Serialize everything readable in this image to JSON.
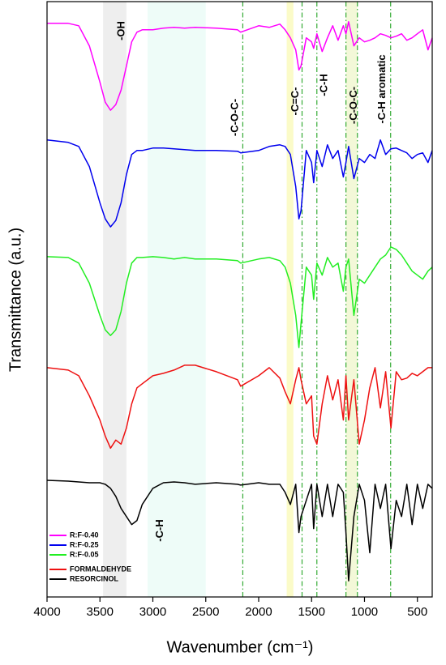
{
  "chart_data": {
    "type": "line",
    "xlabel": "Wavenumber (cm⁻¹)",
    "ylabel": "Transmittance (a.u.)",
    "xlim": [
      4000,
      360
    ],
    "ylim": [
      0,
      74
    ],
    "xticks": [
      4000,
      3500,
      3000,
      2500,
      2000,
      1500,
      1000,
      500
    ],
    "legend": "lower left",
    "x": [
      4000,
      3800,
      3700,
      3600,
      3500,
      3450,
      3400,
      3350,
      3300,
      3250,
      3200,
      3150,
      3100,
      3000,
      2900,
      2800,
      2700,
      2600,
      2400,
      2200,
      2170,
      2000,
      1900,
      1800,
      1750,
      1700,
      1650,
      1620,
      1600,
      1550,
      1500,
      1480,
      1450,
      1400,
      1350,
      1300,
      1250,
      1200,
      1175,
      1150,
      1100,
      1050,
      1000,
      950,
      900,
      850,
      800,
      750,
      700,
      650,
      600,
      550,
      500,
      450,
      400,
      360
    ],
    "series": [
      {
        "name": "R:F-0.40",
        "color": "#ff00ff",
        "values": [
          71.3,
          71.3,
          71,
          68.5,
          64,
          61.5,
          60.5,
          61.2,
          63,
          66,
          69,
          70.2,
          70.5,
          70.5,
          70.7,
          70.8,
          70.7,
          70.8,
          70.7,
          70.5,
          70.2,
          71,
          70.8,
          71.2,
          70.5,
          69.5,
          68,
          65.5,
          66,
          69.5,
          69,
          68.2,
          70,
          67.8,
          69.5,
          71,
          69.2,
          71,
          70,
          71.5,
          68.5,
          69.5,
          69,
          69.2,
          69.5,
          70,
          69.8,
          69.5,
          69.7,
          70,
          69.2,
          69.5,
          70,
          70.5,
          68,
          69.5
        ]
      },
      {
        "name": "R:F-0.25",
        "color": "#0000ee",
        "values": [
          56.8,
          56.5,
          56,
          53.5,
          49,
          47,
          46,
          46.8,
          49,
          52.5,
          55,
          55.5,
          55.5,
          55.8,
          55.8,
          55.7,
          55.6,
          55.5,
          55.5,
          55.4,
          55.2,
          55.5,
          56,
          56.2,
          56,
          55,
          51,
          47,
          48,
          55.5,
          54,
          51.5,
          55.5,
          53.5,
          56.2,
          54.5,
          55.5,
          52.2,
          54,
          56,
          52,
          54.5,
          54,
          55,
          54.5,
          56.8,
          55,
          55.7,
          55.8,
          55.5,
          55.2,
          54.5,
          55,
          55.2,
          54,
          55.5
        ]
      },
      {
        "name": "R:F-0.05",
        "color": "#22ee22",
        "values": [
          42.3,
          42.2,
          41.5,
          39,
          35,
          33.2,
          32.5,
          33.2,
          35.5,
          39,
          41.5,
          42.2,
          42.2,
          42.3,
          42.2,
          42,
          42.2,
          42,
          42,
          41.8,
          41.5,
          42,
          42.2,
          41.8,
          41,
          39,
          35,
          31,
          34,
          41,
          40,
          37,
          41.5,
          40,
          42.2,
          41,
          41.5,
          38,
          41,
          42,
          35,
          39.5,
          39,
          40,
          41,
          42,
          42.5,
          43.5,
          43.2,
          42.5,
          41.5,
          40.5,
          40,
          39.5,
          40.5,
          41
        ]
      },
      {
        "name": "FORMALDEHYDE",
        "color": "#ee1111",
        "values": [
          28.5,
          28.2,
          27.5,
          25,
          22,
          20,
          18.5,
          19.5,
          19,
          21,
          24,
          26,
          26.5,
          27.5,
          27.8,
          28.2,
          28.8,
          28.8,
          28,
          27,
          26.2,
          27.5,
          28.5,
          27.2,
          25.5,
          24,
          27,
          28.5,
          27,
          24,
          25,
          20,
          19,
          24,
          27.5,
          24.5,
          27,
          22,
          27.5,
          22,
          27,
          19,
          22,
          26,
          28.5,
          23.5,
          28,
          21,
          28,
          27,
          27.2,
          27.8,
          27.5,
          28,
          28.5,
          28.5
        ]
      },
      {
        "name": "RESORCINOL",
        "color": "#000000",
        "values": [
          14.5,
          14.4,
          14.3,
          14.2,
          14.2,
          14,
          13.5,
          12.5,
          11,
          10,
          9,
          9.5,
          11.5,
          13.5,
          14.2,
          14.3,
          14.2,
          14,
          14.2,
          14,
          13.9,
          14.2,
          14,
          14,
          13,
          11.5,
          14,
          8,
          10,
          12,
          14,
          8.5,
          14,
          10,
          14,
          10,
          14,
          13,
          8,
          2,
          10,
          14,
          12,
          5.5,
          14,
          11,
          14,
          6,
          12,
          10,
          14,
          9,
          14,
          11,
          14,
          13.5
        ]
      }
    ],
    "bands": [
      {
        "range": [
          3470,
          3250
        ],
        "color": "#eeeeee"
      },
      {
        "range": [
          3050,
          2500
        ],
        "color": "#eefcf8"
      },
      {
        "range": [
          1735,
          1672
        ],
        "color": "#fbfbc8"
      },
      {
        "range": [
          1175,
          1067
        ],
        "color": "#f3f8d8"
      }
    ],
    "vlines": [
      2150,
      1590,
      1450,
      1175,
      1067,
      753
    ],
    "vline_color": "#33aa33",
    "annotations": [
      {
        "text": "-OH",
        "x": 3295
      },
      {
        "text": "-C-O-C-",
        "x": 2223
      },
      {
        "text": "-C=C-",
        "x": 1650
      },
      {
        "text": "-C-H",
        "x": 1380
      },
      {
        "text": "-C-O-C-",
        "x": 1100
      },
      {
        "text": "-C-H aromatic",
        "x": 830
      },
      {
        "text": "-C-H",
        "x": 2930
      }
    ]
  }
}
